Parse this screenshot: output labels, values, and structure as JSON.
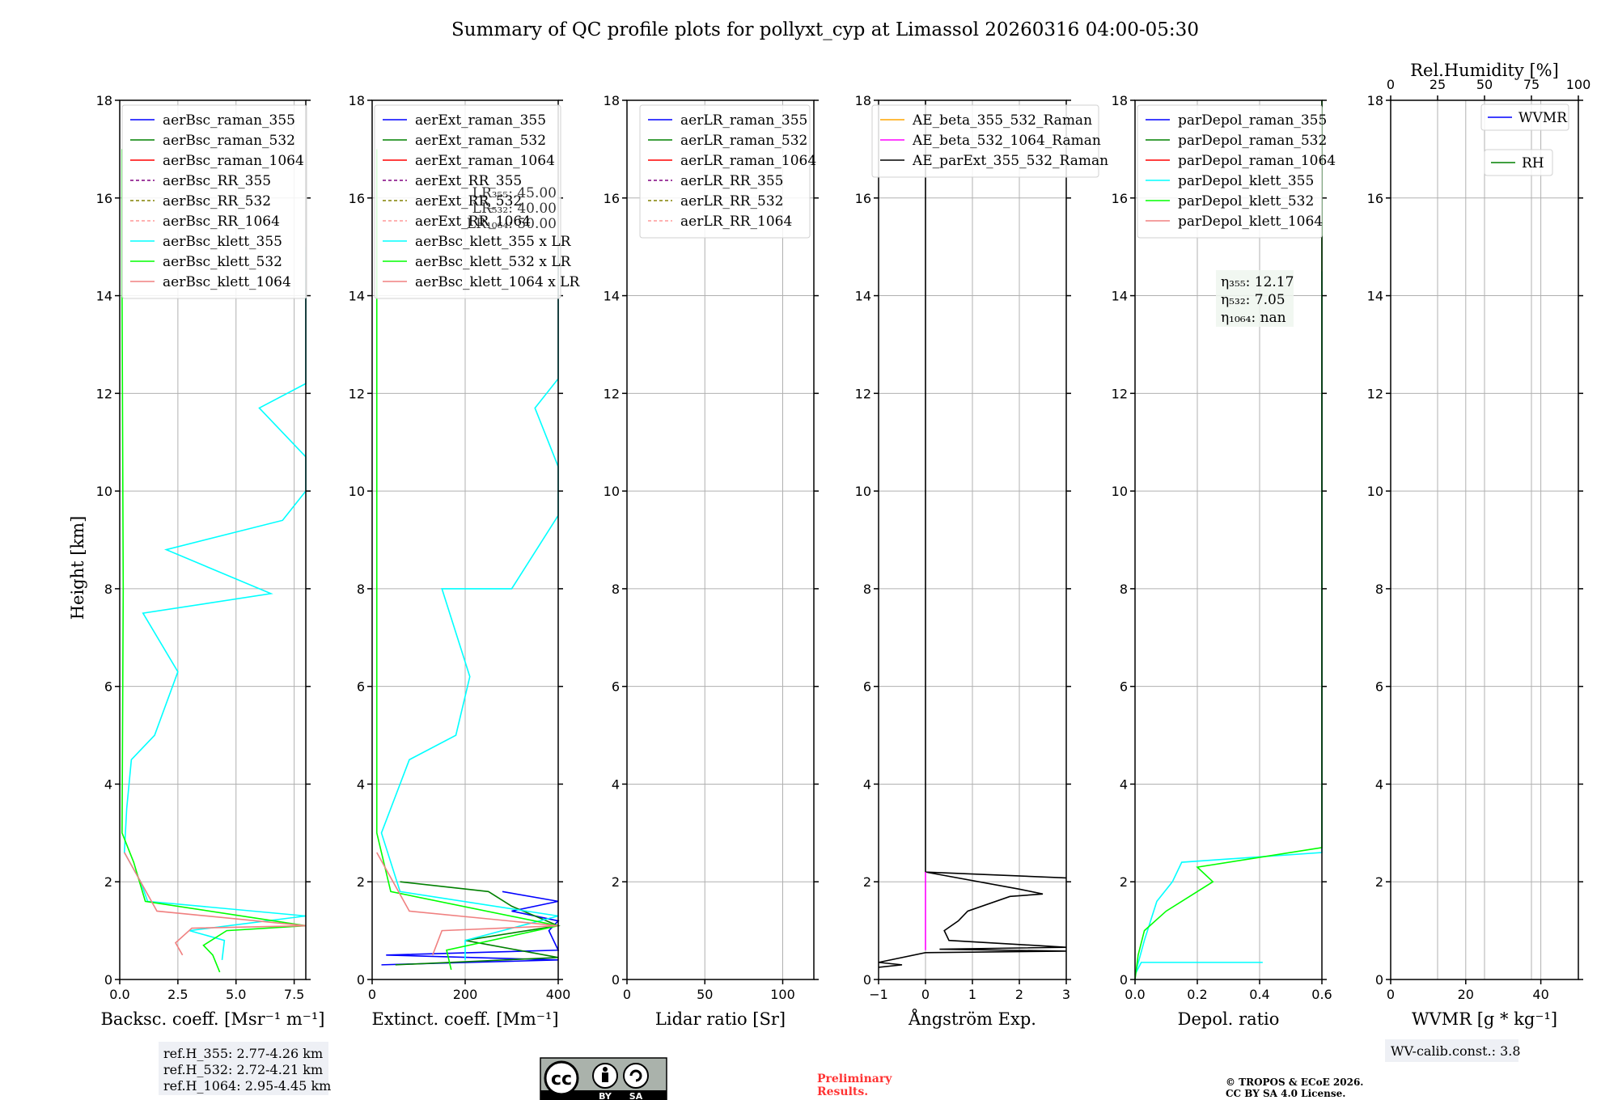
{
  "title": "Summary of QC profile plots for pollyxt_cyp at Limassol 20260316 04:00-05:30",
  "y_label": "Height [km]",
  "y_ticks": [
    "0",
    "2",
    "4",
    "6",
    "8",
    "10",
    "12",
    "14",
    "16",
    "18"
  ],
  "panels": [
    {
      "key": "bsc",
      "xlabel": "Backsc. coeff. [Msr⁻¹ m⁻¹]",
      "xticks": [
        "0.0",
        "2.5",
        "5.0",
        "7.5"
      ],
      "legend": [
        {
          "label": "aerBsc_raman_355",
          "color": "#0000ff",
          "dash": false
        },
        {
          "label": "aerBsc_raman_532",
          "color": "#008000",
          "dash": false
        },
        {
          "label": "aerBsc_raman_1064",
          "color": "#ff0000",
          "dash": false
        },
        {
          "label": "aerBsc_RR_355",
          "color": "#800080",
          "dash": true
        },
        {
          "label": "aerBsc_RR_532",
          "color": "#808000",
          "dash": true
        },
        {
          "label": "aerBsc_RR_1064",
          "color": "#ff9999",
          "dash": true
        },
        {
          "label": "aerBsc_klett_355",
          "color": "#00ffff",
          "dash": false
        },
        {
          "label": "aerBsc_klett_532",
          "color": "#00ff00",
          "dash": false
        },
        {
          "label": "aerBsc_klett_1064",
          "color": "#f08080",
          "dash": false
        }
      ]
    },
    {
      "key": "ext",
      "xlabel": "Extinct. coeff. [Mm⁻¹]",
      "xticks": [
        "0",
        "200",
        "400"
      ],
      "legend": [
        {
          "label": "aerExt_raman_355",
          "color": "#0000ff",
          "dash": false
        },
        {
          "label": "aerExt_raman_532",
          "color": "#008000",
          "dash": false
        },
        {
          "label": "aerExt_raman_1064",
          "color": "#ff0000",
          "dash": false
        },
        {
          "label": "aerExt_RR_355",
          "color": "#800080",
          "dash": true
        },
        {
          "label": "aerExt_RR_532",
          "color": "#808000",
          "dash": true
        },
        {
          "label": "aerExt_RR_1064",
          "color": "#ff9999",
          "dash": true
        },
        {
          "label": "aerBsc_klett_355 x LR",
          "color": "#00ffff",
          "dash": false
        },
        {
          "label": "aerBsc_klett_532 x LR",
          "color": "#00ff00",
          "dash": false
        },
        {
          "label": "aerBsc_klett_1064 x LR",
          "color": "#f08080",
          "dash": false
        }
      ],
      "lr_notes": [
        "LR₃₅₅: 45.00",
        "LR₅₃₂: 40.00",
        "LR₁₀₆₄: 50.00"
      ]
    },
    {
      "key": "lr",
      "xlabel": "Lidar ratio [Sr]",
      "xticks": [
        "0",
        "50",
        "100"
      ],
      "legend": [
        {
          "label": "aerLR_raman_355",
          "color": "#0000ff",
          "dash": false
        },
        {
          "label": "aerLR_raman_532",
          "color": "#008000",
          "dash": false
        },
        {
          "label": "aerLR_raman_1064",
          "color": "#ff0000",
          "dash": false
        },
        {
          "label": "aerLR_RR_355",
          "color": "#800080",
          "dash": true
        },
        {
          "label": "aerLR_RR_532",
          "color": "#808000",
          "dash": true
        },
        {
          "label": "aerLR_RR_1064",
          "color": "#ff9999",
          "dash": true
        }
      ]
    },
    {
      "key": "ae",
      "xlabel": "Ångström Exp.",
      "xticks": [
        "−1",
        "0",
        "1",
        "2",
        "3"
      ],
      "legend": [
        {
          "label": "AE_beta_355_532_Raman",
          "color": "#ffa500",
          "dash": false
        },
        {
          "label": "AE_beta_532_1064_Raman",
          "color": "#ff00ff",
          "dash": false
        },
        {
          "label": "AE_parExt_355_532_Raman",
          "color": "#000000",
          "dash": false
        }
      ]
    },
    {
      "key": "dep",
      "xlabel": "Depol. ratio",
      "xticks": [
        "0.0",
        "0.2",
        "0.4",
        "0.6"
      ],
      "legend": [
        {
          "label": "parDepol_raman_355",
          "color": "#0000ff",
          "dash": false
        },
        {
          "label": "parDepol_raman_532",
          "color": "#008000",
          "dash": false
        },
        {
          "label": "parDepol_raman_1064",
          "color": "#ff0000",
          "dash": false
        },
        {
          "label": "parDepol_klett_355",
          "color": "#00ffff",
          "dash": false
        },
        {
          "label": "parDepol_klett_532",
          "color": "#00ff00",
          "dash": false
        },
        {
          "label": "parDepol_klett_1064",
          "color": "#f08080",
          "dash": false
        }
      ],
      "eta": [
        "η₃₅₅: 12.17",
        "η₅₃₂: 7.05",
        "η₁₀₆₄: nan"
      ]
    },
    {
      "key": "wv",
      "xlabel": "WVMR [g * kg⁻¹]",
      "xticks": [
        "0",
        "20",
        "40"
      ],
      "top_label": "Rel.Humidity [%]",
      "top_ticks": [
        "0",
        "25",
        "50",
        "75",
        "100"
      ],
      "legend_wvmr": {
        "label": "WVMR",
        "color": "#0000ff"
      },
      "legend_rh": {
        "label": "RH",
        "color": "#008000"
      }
    }
  ],
  "refh": [
    "ref.H_355: 2.77-4.26 km",
    "ref.H_532: 2.72-4.21 km",
    "ref.H_1064: 2.95-4.45 km"
  ],
  "wv_calib": "WV-calib.const.: 3.8",
  "prelim": [
    "Preliminary",
    "Results."
  ],
  "copyright": [
    "© TROPOS & ECoE 2026.",
    "CC BY SA 4.0 License."
  ],
  "cc_badge": {
    "cc": "cc",
    "by": "BY",
    "sa": "SA"
  },
  "chart_data": [
    {
      "type": "line",
      "title": "",
      "xlabel": "Backsc. coeff. [Msr⁻¹ m⁻¹]",
      "ylabel": "Height [km]",
      "xlim": [
        0,
        8
      ],
      "ylim": [
        0,
        18
      ],
      "series": [
        {
          "name": "aerBsc_klett_355",
          "points": [
            [
              4.4,
              0.4
            ],
            [
              4.5,
              0.8
            ],
            [
              3.0,
              1.0
            ],
            [
              8,
              1.3
            ],
            [
              1.2,
              1.6
            ],
            [
              0.9,
              2.0
            ],
            [
              0.2,
              2.6
            ],
            [
              0.3,
              3.5
            ],
            [
              0.5,
              4.5
            ],
            [
              1.5,
              5.0
            ],
            [
              2.5,
              6.3
            ],
            [
              1.0,
              7.5
            ],
            [
              6.5,
              7.9
            ],
            [
              2.0,
              8.8
            ],
            [
              7.0,
              9.4
            ],
            [
              8,
              10.0
            ],
            [
              8,
              10.7
            ],
            [
              6.0,
              11.7
            ],
            [
              8,
              12.2
            ],
            [
              8,
              13.2
            ],
            [
              8,
              15.0
            ]
          ]
        },
        {
          "name": "aerBsc_klett_532",
          "points": [
            [
              4.3,
              0.15
            ],
            [
              4.0,
              0.5
            ],
            [
              3.6,
              0.7
            ],
            [
              4.6,
              1.0
            ],
            [
              8,
              1.1
            ],
            [
              1.1,
              1.6
            ],
            [
              0.6,
              2.4
            ],
            [
              0.1,
              3.0
            ],
            [
              0.15,
              8
            ],
            [
              0.1,
              14
            ],
            [
              0.1,
              17
            ]
          ]
        },
        {
          "name": "aerBsc_klett_1064",
          "points": [
            [
              2.7,
              0.5
            ],
            [
              2.4,
              0.75
            ],
            [
              3.1,
              1.05
            ],
            [
              8,
              1.1
            ],
            [
              1.6,
              1.4
            ],
            [
              0.2,
              2.6
            ]
          ]
        }
      ]
    },
    {
      "type": "line",
      "title": "",
      "xlabel": "Extinct. coeff. [Mm⁻¹]",
      "ylabel": "Height [km]",
      "xlim": [
        0,
        400
      ],
      "ylim": [
        0,
        18
      ],
      "series": [
        {
          "name": "aerExt_raman_355",
          "points": [
            [
              20,
              0.3
            ],
            [
              400,
              0.4
            ],
            [
              30,
              0.5
            ],
            [
              400,
              0.6
            ],
            [
              380,
              1.0
            ],
            [
              400,
              1.2
            ],
            [
              300,
              1.4
            ],
            [
              400,
              1.6
            ],
            [
              280,
              1.8
            ]
          ]
        },
        {
          "name": "aerExt_raman_532",
          "points": [
            [
              50,
              0.3
            ],
            [
              400,
              0.45
            ],
            [
              200,
              0.8
            ],
            [
              400,
              1.1
            ],
            [
              300,
              1.5
            ],
            [
              250,
              1.8
            ],
            [
              60,
              2.0
            ]
          ]
        },
        {
          "name": "aerBsc_klett_355 x LR",
          "points": [
            [
              200,
              0.4
            ],
            [
              200,
              0.8
            ],
            [
              400,
              1.3
            ],
            [
              60,
              1.8
            ],
            [
              20,
              3.0
            ],
            [
              80,
              4.5
            ],
            [
              180,
              5.0
            ],
            [
              210,
              6.2
            ],
            [
              150,
              8
            ],
            [
              300,
              8
            ],
            [
              400,
              9.5
            ],
            [
              400,
              10.5
            ],
            [
              350,
              11.7
            ],
            [
              400,
              12.3
            ],
            [
              400,
              13.2
            ],
            [
              400,
              15
            ]
          ]
        },
        {
          "name": "aerBsc_klett_532 x LR",
          "points": [
            [
              170,
              0.2
            ],
            [
              160,
              0.6
            ],
            [
              400,
              1.1
            ],
            [
              40,
              1.8
            ],
            [
              10,
              3.0
            ],
            [
              10,
              10
            ],
            [
              10,
              17
            ]
          ]
        },
        {
          "name": "aerBsc_klett_1064 x LR",
          "points": [
            [
              130,
              0.5
            ],
            [
              150,
              1.0
            ],
            [
              400,
              1.1
            ],
            [
              80,
              1.4
            ],
            [
              10,
              2.6
            ]
          ]
        }
      ]
    },
    {
      "type": "line",
      "title": "",
      "xlabel": "Lidar ratio [Sr]",
      "ylabel": "Height [km]",
      "xlim": [
        0,
        120
      ],
      "ylim": [
        0,
        18
      ],
      "series": []
    },
    {
      "type": "line",
      "title": "",
      "xlabel": "Ångström Exp.",
      "ylabel": "Height [km]",
      "xlim": [
        -1,
        3
      ],
      "ylim": [
        0,
        18
      ],
      "series": [
        {
          "name": "AE_parExt_355_532_Raman",
          "points": [
            [
              -1,
              0.25
            ],
            [
              -0.5,
              0.3
            ],
            [
              -1,
              0.35
            ],
            [
              0,
              0.55
            ],
            [
              3,
              0.58
            ],
            [
              0.3,
              0.62
            ],
            [
              3,
              0.66
            ],
            [
              0.5,
              0.8
            ],
            [
              0.4,
              1.0
            ],
            [
              0.7,
              1.2
            ],
            [
              0.9,
              1.4
            ],
            [
              1.8,
              1.7
            ],
            [
              2.5,
              1.75
            ],
            [
              2.0,
              1.85
            ],
            [
              0,
              2.2
            ],
            [
              3,
              2.08
            ],
            [
              0,
              2.2
            ],
            [
              0,
              18
            ]
          ]
        },
        {
          "name": "AE_beta_532_1064_Raman",
          "points": [
            [
              0,
              0.6
            ],
            [
              0,
              2.2
            ]
          ]
        }
      ]
    },
    {
      "type": "line",
      "title": "",
      "xlabel": "Depol. ratio",
      "ylabel": "Height [km]",
      "xlim": [
        0,
        0.6
      ],
      "ylim": [
        0,
        18
      ],
      "series": [
        {
          "name": "parDepol_klett_355",
          "points": [
            [
              0.41,
              0.35
            ],
            [
              0.02,
              0.35
            ],
            [
              0.0,
              0.1
            ],
            [
              0.03,
              0.8
            ],
            [
              0.05,
              1.2
            ],
            [
              0.07,
              1.6
            ],
            [
              0.12,
              2.0
            ],
            [
              0.15,
              2.4
            ],
            [
              0.6,
              2.6
            ],
            [
              0.6,
              14.5
            ]
          ]
        },
        {
          "name": "parDepol_klett_532",
          "points": [
            [
              0.0,
              0.0
            ],
            [
              0.01,
              0.5
            ],
            [
              0.03,
              1.0
            ],
            [
              0.1,
              1.4
            ],
            [
              0.2,
              1.8
            ],
            [
              0.25,
              2.0
            ],
            [
              0.2,
              2.3
            ],
            [
              0.6,
              2.7
            ],
            [
              0.6,
              18
            ]
          ]
        }
      ]
    },
    {
      "type": "line",
      "title": "",
      "xlabel": "WVMR [g * kg⁻¹]",
      "ylabel": "Height [km]",
      "xlim": [
        0,
        50
      ],
      "ylim": [
        0,
        18
      ],
      "x2label": "Rel.Humidity [%]",
      "x2lim": [
        0,
        100
      ],
      "series": []
    }
  ]
}
